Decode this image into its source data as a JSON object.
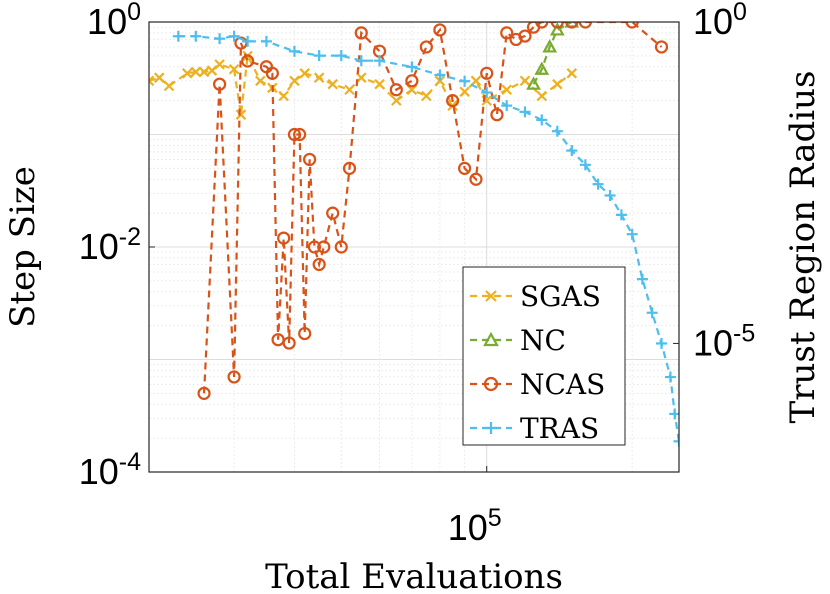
{
  "chart_data": {
    "type": "line",
    "xlabel": "Total Evaluations",
    "ylabel_left": "Step Size",
    "ylabel_right": "Trust Region Radius",
    "x_scale": "log",
    "y_scale": "log",
    "xlim": [
      20000,
      250000
    ],
    "ylim_left": [
      0.0001,
      1
    ],
    "ylim_right": [
      1e-07,
      1
    ],
    "x_ticks": [
      {
        "base": "10",
        "exp": "5",
        "value": 100000
      }
    ],
    "y_ticks_left": [
      {
        "base": "10",
        "exp": "0",
        "value": 1
      },
      {
        "base": "10",
        "exp": "-2",
        "value": 0.01
      },
      {
        "base": "10",
        "exp": "-4",
        "value": 0.0001
      }
    ],
    "y_ticks_right": [
      {
        "base": "10",
        "exp": "0",
        "value": 1
      },
      {
        "base": "10",
        "exp": "-5",
        "value": 1e-05
      }
    ],
    "grid": true,
    "legend_position": "bottom-right",
    "series": [
      {
        "name": "SGAS",
        "color": "#EDB120",
        "marker": "x",
        "axis": "left",
        "x": [
          20000,
          21000,
          22000,
          24000,
          25000,
          26000,
          27000,
          28000,
          30000,
          31000,
          32000,
          34000,
          36000,
          38000,
          40000,
          42000,
          45000,
          48000,
          52000,
          55000,
          60000,
          65000,
          70000,
          75000,
          80000,
          85000,
          90000,
          95000,
          100000,
          110000,
          120000,
          130000,
          140000,
          150000
        ],
        "y": [
          0.3,
          0.32,
          0.27,
          0.35,
          0.36,
          0.36,
          0.37,
          0.42,
          0.38,
          0.15,
          0.5,
          0.3,
          0.26,
          0.22,
          0.3,
          0.35,
          0.32,
          0.28,
          0.25,
          0.32,
          0.28,
          0.2,
          0.25,
          0.22,
          0.3,
          0.18,
          0.24,
          0.3,
          0.2,
          0.25,
          0.3,
          0.22,
          0.28,
          0.35
        ]
      },
      {
        "name": "NC",
        "color": "#77AC30",
        "marker": "triangle",
        "axis": "left",
        "x": [
          125000,
          130000,
          135000,
          140000,
          150000
        ],
        "y": [
          0.28,
          0.38,
          0.6,
          0.85,
          1.0
        ]
      },
      {
        "name": "NCAS",
        "color": "#D95319",
        "marker": "o",
        "axis": "left",
        "x": [
          26000,
          28000,
          30000,
          31000,
          32000,
          35000,
          36000,
          37000,
          38000,
          39000,
          40000,
          41000,
          42000,
          43000,
          44000,
          45000,
          46000,
          48000,
          50000,
          52000,
          55000,
          60000,
          65000,
          70000,
          75000,
          80000,
          85000,
          90000,
          95000,
          100000,
          105000,
          110000,
          115000,
          120000,
          125000,
          130000,
          140000,
          150000,
          160000,
          200000,
          230000
        ],
        "y": [
          0.0005,
          0.28,
          0.0007,
          0.65,
          0.45,
          0.4,
          0.35,
          0.0015,
          0.012,
          0.0014,
          0.1,
          0.1,
          0.0017,
          0.06,
          0.01,
          0.007,
          0.01,
          0.02,
          0.01,
          0.05,
          0.8,
          0.55,
          0.25,
          0.3,
          0.6,
          0.85,
          0.2,
          0.05,
          0.04,
          0.35,
          0.15,
          0.8,
          0.7,
          0.75,
          0.9,
          1.0,
          1.0,
          1.0,
          1.0,
          1.0,
          0.6
        ]
      },
      {
        "name": "TRAS",
        "color": "#4DBEEE",
        "marker": "+",
        "axis": "right",
        "x": [
          23000,
          25000,
          28000,
          30000,
          32000,
          35000,
          40000,
          45000,
          50000,
          55000,
          60000,
          70000,
          80000,
          90000,
          100000,
          110000,
          120000,
          130000,
          140000,
          150000,
          160000,
          170000,
          180000,
          190000,
          200000,
          210000,
          220000,
          230000,
          240000,
          245000,
          250000
        ],
        "y": [
          0.6,
          0.6,
          0.55,
          0.6,
          0.5,
          0.5,
          0.35,
          0.3,
          0.3,
          0.25,
          0.25,
          0.2,
          0.15,
          0.12,
          0.08,
          0.05,
          0.04,
          0.03,
          0.02,
          0.01,
          0.006,
          0.003,
          0.002,
          0.001,
          0.0005,
          0.0001,
          3e-05,
          1e-05,
          3e-06,
          8e-07,
          3e-07
        ]
      }
    ]
  }
}
